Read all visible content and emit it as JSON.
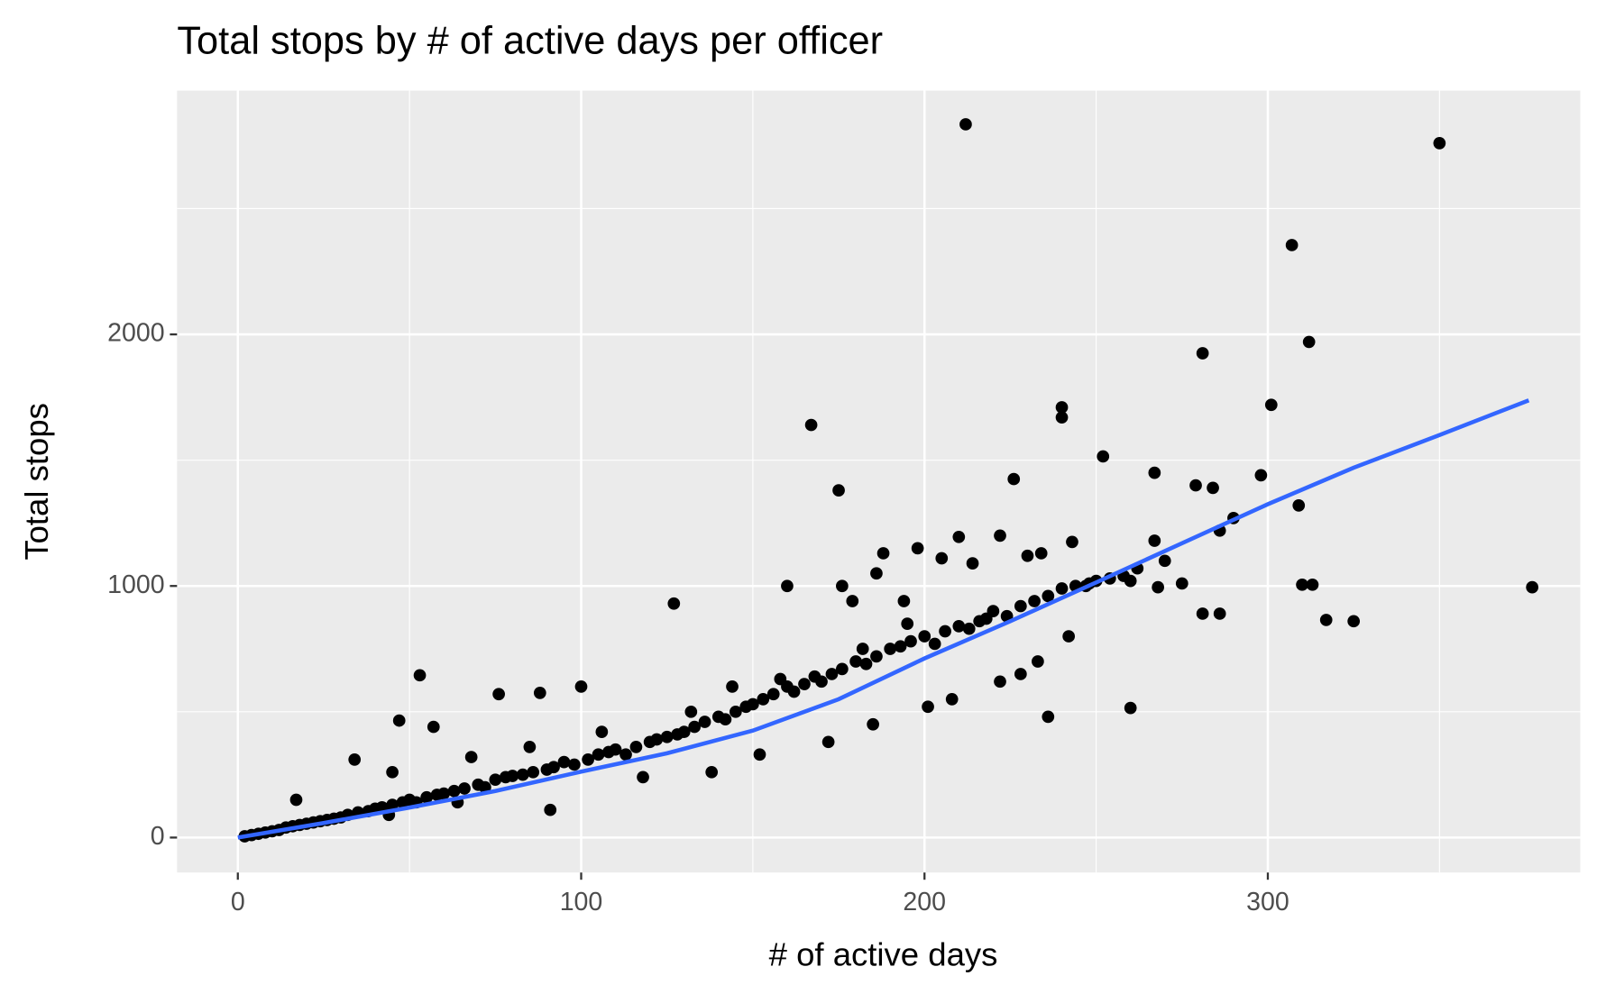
{
  "chart_data": {
    "type": "scatter",
    "title": "Total stops by # of active days per officer",
    "x_label": "# of active days",
    "y_label": "Total stops",
    "xlim": [
      -17.7,
      391
    ],
    "ylim": [
      -139,
      2969
    ],
    "xticks": [
      0,
      100,
      200,
      300
    ],
    "yticks": [
      0,
      1000,
      2000
    ],
    "xgrid_minor": [
      50,
      150,
      250,
      350
    ],
    "ygrid_minor": [
      500,
      1500,
      2500
    ],
    "grid": true,
    "points": {
      "color": "#000000",
      "x": [
        212,
        350,
        307,
        312,
        281,
        301,
        240,
        240,
        167,
        175,
        252,
        226,
        267,
        279,
        284,
        298,
        309,
        290,
        286,
        377,
        310,
        313,
        317,
        325,
        281,
        286,
        260,
        160,
        127,
        53,
        76,
        47,
        57,
        34,
        100,
        88,
        210,
        222,
        230,
        234,
        198,
        188,
        267,
        275,
        268,
        260,
        250,
        247,
        243,
        214,
        205,
        186,
        176,
        179,
        194,
        218,
        2,
        4,
        6,
        8,
        10,
        12,
        14,
        16,
        18,
        20,
        22,
        24,
        26,
        28,
        30,
        32,
        35,
        38,
        40,
        42,
        45,
        48,
        50,
        52,
        55,
        58,
        60,
        63,
        66,
        70,
        72,
        75,
        78,
        80,
        83,
        86,
        90,
        92,
        95,
        98,
        102,
        105,
        108,
        110,
        113,
        116,
        120,
        122,
        125,
        128,
        130,
        133,
        136,
        140,
        142,
        145,
        148,
        150,
        153,
        156,
        160,
        162,
        165,
        168,
        170,
        173,
        176,
        180,
        183,
        186,
        190,
        193,
        196,
        200,
        203,
        206,
        210,
        213,
        216,
        220,
        224,
        228,
        232,
        236,
        240,
        244,
        248,
        254,
        258,
        262,
        270,
        17,
        44,
        64,
        91,
        118,
        138,
        152,
        172,
        185,
        201,
        228,
        236,
        45,
        68,
        85,
        106,
        132,
        144,
        158,
        182,
        195,
        208,
        222,
        233,
        242
      ],
      "y": [
        2835,
        2760,
        2355,
        1970,
        1925,
        1720,
        1710,
        1670,
        1640,
        1380,
        1515,
        1425,
        1450,
        1400,
        1390,
        1440,
        1320,
        1270,
        1220,
        995,
        1005,
        1005,
        865,
        860,
        890,
        890,
        515,
        1000,
        930,
        645,
        570,
        465,
        440,
        310,
        600,
        575,
        1195,
        1200,
        1120,
        1130,
        1150,
        1130,
        1180,
        1010,
        995,
        1020,
        1020,
        1000,
        1175,
        1090,
        1110,
        1050,
        1000,
        940,
        940,
        870,
        5,
        10,
        15,
        20,
        25,
        30,
        40,
        45,
        50,
        55,
        60,
        65,
        70,
        75,
        80,
        90,
        100,
        105,
        115,
        120,
        130,
        140,
        150,
        140,
        160,
        170,
        175,
        185,
        195,
        210,
        200,
        230,
        240,
        245,
        250,
        260,
        270,
        280,
        300,
        290,
        310,
        330,
        340,
        350,
        330,
        360,
        380,
        390,
        400,
        410,
        420,
        440,
        460,
        480,
        470,
        500,
        520,
        530,
        550,
        570,
        600,
        580,
        610,
        640,
        620,
        650,
        670,
        700,
        690,
        720,
        750,
        760,
        780,
        800,
        770,
        820,
        840,
        830,
        860,
        900,
        880,
        920,
        940,
        960,
        990,
        1000,
        1010,
        1030,
        1040,
        1070,
        1100,
        150,
        90,
        140,
        110,
        240,
        260,
        330,
        380,
        450,
        520,
        650,
        480,
        260,
        320,
        360,
        420,
        500,
        600,
        630,
        750,
        850,
        550,
        620,
        700,
        800
      ]
    },
    "trend": {
      "color": "#3366ff",
      "x": [
        0,
        25,
        50,
        75,
        100,
        125,
        150,
        175,
        200,
        225,
        250,
        275,
        300,
        325,
        350,
        376
      ],
      "y": [
        0,
        58,
        119,
        185,
        262,
        335,
        425,
        550,
        712,
        860,
        1014,
        1170,
        1325,
        1470,
        1600,
        1738
      ]
    }
  }
}
